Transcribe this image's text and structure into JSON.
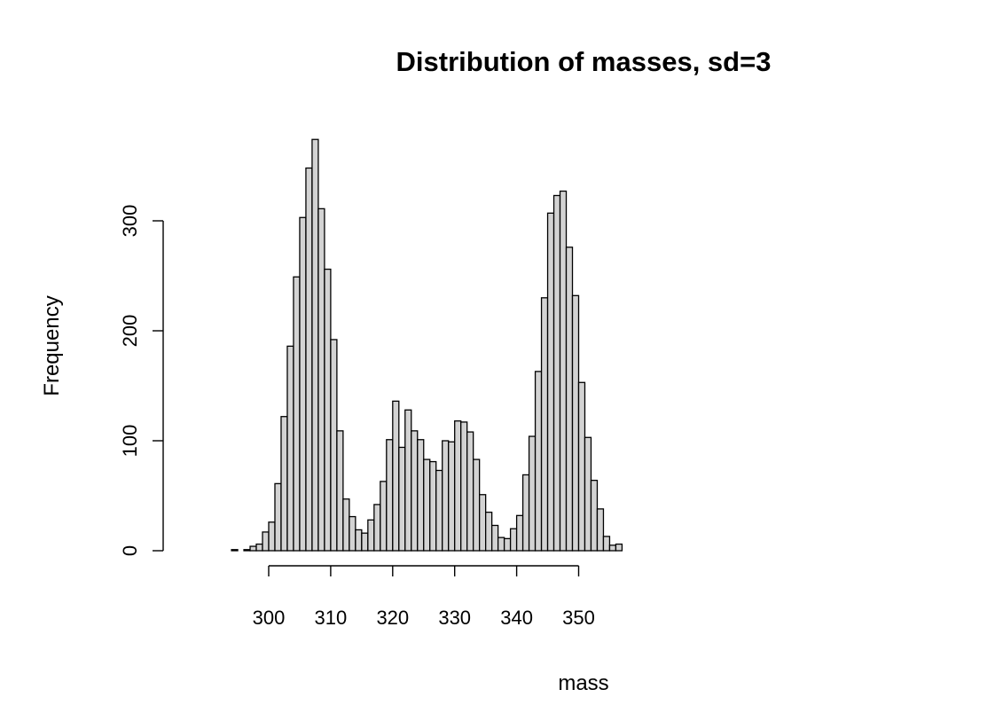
{
  "chart_data": {
    "type": "bar",
    "subtype": "histogram",
    "title": "Distribution of masses, sd=3",
    "xlabel": "mass",
    "ylabel": "Frequency",
    "bin_width": 1,
    "bin_start": 294,
    "x_ticks": [
      300,
      310,
      320,
      330,
      340,
      350
    ],
    "y_ticks": [
      0,
      100,
      200,
      300
    ],
    "xlim": [
      294,
      357
    ],
    "ylim": [
      0,
      375
    ],
    "grid": false,
    "legend": "none",
    "bar_fill": "#d3d3d3",
    "bar_stroke": "#000000",
    "counts": [
      1,
      0,
      1,
      4,
      6,
      17,
      26,
      61,
      122,
      186,
      249,
      303,
      348,
      374,
      311,
      256,
      192,
      109,
      47,
      31,
      19,
      16,
      28,
      42,
      63,
      101,
      136,
      94,
      128,
      109,
      101,
      83,
      81,
      73,
      100,
      99,
      118,
      117,
      108,
      83,
      51,
      35,
      23,
      12,
      11,
      20,
      32,
      69,
      104,
      163,
      230,
      307,
      323,
      327,
      276,
      232,
      153,
      103,
      64,
      38,
      13,
      5,
      6
    ]
  }
}
